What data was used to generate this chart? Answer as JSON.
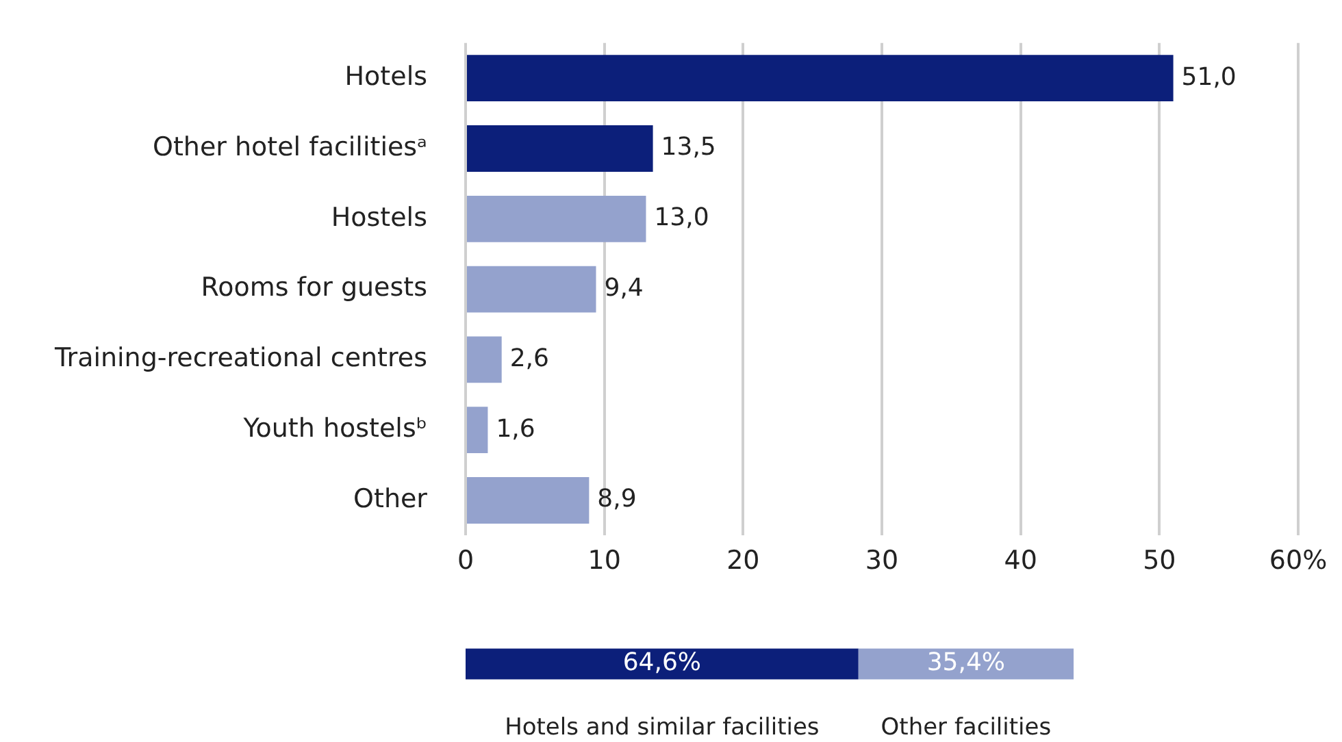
{
  "chart_data": [
    {
      "type": "bar",
      "orientation": "horizontal",
      "categories": [
        "Hotels",
        "Other hotel facilitiesᵃ",
        "Hostels",
        "Rooms for guests",
        "Training-recreational centres",
        "Youth hostelsᵇ",
        "Other"
      ],
      "values": [
        51.0,
        13.5,
        13.0,
        9.4,
        2.6,
        1.6,
        8.9
      ],
      "value_labels": [
        "51,0",
        "13,5",
        "13,0",
        "9,4",
        "2,6",
        "1,6",
        "8,9"
      ],
      "colors": [
        "#0c1f7a",
        "#0c1f7a",
        "#94a2cd",
        "#94a2cd",
        "#94a2cd",
        "#94a2cd",
        "#94a2cd"
      ],
      "xlim": [
        0,
        60
      ],
      "xticks": [
        0,
        10,
        20,
        30,
        40,
        {
          "value": 60,
          "label": "60%"
        },
        50
      ],
      "grid": "x",
      "legend": false
    },
    {
      "type": "bar",
      "orientation": "horizontal",
      "stacked": true,
      "categories": [
        null
      ],
      "xlim": [
        0,
        100
      ],
      "tick_labels": false,
      "legend": false,
      "series": [
        {
          "name": "Hotels and similar facilities",
          "color": "#0c1f7a",
          "values": [
            64.6
          ],
          "value_labels": [
            "64,6%"
          ]
        },
        {
          "name": "Other facilities",
          "color": "#94a2cd",
          "values": [
            35.4
          ],
          "value_labels": [
            "35,4%"
          ]
        }
      ]
    }
  ]
}
